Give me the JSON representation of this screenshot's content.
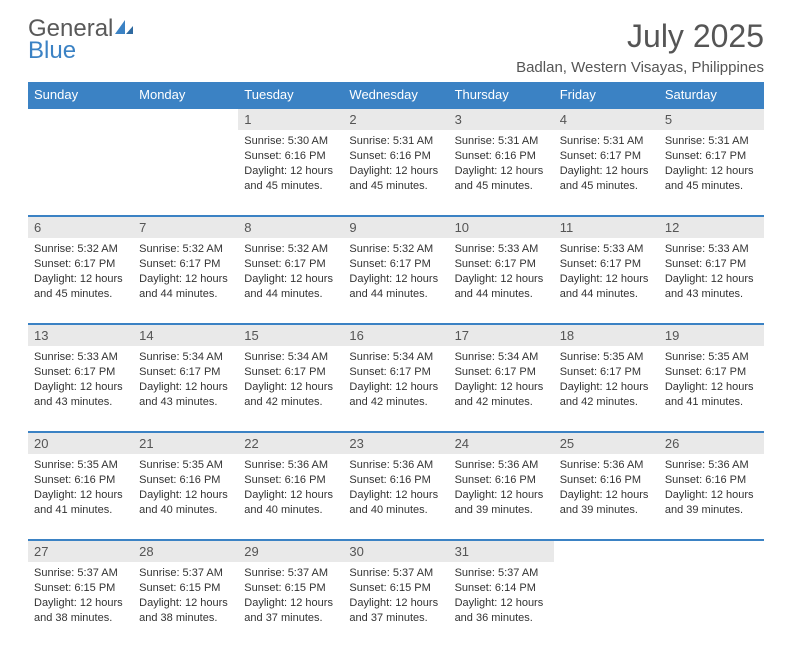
{
  "brand": {
    "word1": "General",
    "word2": "Blue"
  },
  "title": "July 2025",
  "location": "Badlan, Western Visayas, Philippines",
  "colors": {
    "accent": "#3b82c4",
    "header_bg": "#3b82c4",
    "header_text": "#ffffff",
    "daynum_bg": "#e9e9e9",
    "text": "#333333",
    "brand_gray": "#595959"
  },
  "layout": {
    "columns": 7,
    "weeks": 5,
    "first_weekday_index": 2,
    "days_in_month": 31
  },
  "weekdays": [
    "Sunday",
    "Monday",
    "Tuesday",
    "Wednesday",
    "Thursday",
    "Friday",
    "Saturday"
  ],
  "days": [
    {
      "n": 1,
      "sunrise": "5:30 AM",
      "sunset": "6:16 PM",
      "daylight": "12 hours and 45 minutes."
    },
    {
      "n": 2,
      "sunrise": "5:31 AM",
      "sunset": "6:16 PM",
      "daylight": "12 hours and 45 minutes."
    },
    {
      "n": 3,
      "sunrise": "5:31 AM",
      "sunset": "6:16 PM",
      "daylight": "12 hours and 45 minutes."
    },
    {
      "n": 4,
      "sunrise": "5:31 AM",
      "sunset": "6:17 PM",
      "daylight": "12 hours and 45 minutes."
    },
    {
      "n": 5,
      "sunrise": "5:31 AM",
      "sunset": "6:17 PM",
      "daylight": "12 hours and 45 minutes."
    },
    {
      "n": 6,
      "sunrise": "5:32 AM",
      "sunset": "6:17 PM",
      "daylight": "12 hours and 45 minutes."
    },
    {
      "n": 7,
      "sunrise": "5:32 AM",
      "sunset": "6:17 PM",
      "daylight": "12 hours and 44 minutes."
    },
    {
      "n": 8,
      "sunrise": "5:32 AM",
      "sunset": "6:17 PM",
      "daylight": "12 hours and 44 minutes."
    },
    {
      "n": 9,
      "sunrise": "5:32 AM",
      "sunset": "6:17 PM",
      "daylight": "12 hours and 44 minutes."
    },
    {
      "n": 10,
      "sunrise": "5:33 AM",
      "sunset": "6:17 PM",
      "daylight": "12 hours and 44 minutes."
    },
    {
      "n": 11,
      "sunrise": "5:33 AM",
      "sunset": "6:17 PM",
      "daylight": "12 hours and 44 minutes."
    },
    {
      "n": 12,
      "sunrise": "5:33 AM",
      "sunset": "6:17 PM",
      "daylight": "12 hours and 43 minutes."
    },
    {
      "n": 13,
      "sunrise": "5:33 AM",
      "sunset": "6:17 PM",
      "daylight": "12 hours and 43 minutes."
    },
    {
      "n": 14,
      "sunrise": "5:34 AM",
      "sunset": "6:17 PM",
      "daylight": "12 hours and 43 minutes."
    },
    {
      "n": 15,
      "sunrise": "5:34 AM",
      "sunset": "6:17 PM",
      "daylight": "12 hours and 42 minutes."
    },
    {
      "n": 16,
      "sunrise": "5:34 AM",
      "sunset": "6:17 PM",
      "daylight": "12 hours and 42 minutes."
    },
    {
      "n": 17,
      "sunrise": "5:34 AM",
      "sunset": "6:17 PM",
      "daylight": "12 hours and 42 minutes."
    },
    {
      "n": 18,
      "sunrise": "5:35 AM",
      "sunset": "6:17 PM",
      "daylight": "12 hours and 42 minutes."
    },
    {
      "n": 19,
      "sunrise": "5:35 AM",
      "sunset": "6:17 PM",
      "daylight": "12 hours and 41 minutes."
    },
    {
      "n": 20,
      "sunrise": "5:35 AM",
      "sunset": "6:16 PM",
      "daylight": "12 hours and 41 minutes."
    },
    {
      "n": 21,
      "sunrise": "5:35 AM",
      "sunset": "6:16 PM",
      "daylight": "12 hours and 40 minutes."
    },
    {
      "n": 22,
      "sunrise": "5:36 AM",
      "sunset": "6:16 PM",
      "daylight": "12 hours and 40 minutes."
    },
    {
      "n": 23,
      "sunrise": "5:36 AM",
      "sunset": "6:16 PM",
      "daylight": "12 hours and 40 minutes."
    },
    {
      "n": 24,
      "sunrise": "5:36 AM",
      "sunset": "6:16 PM",
      "daylight": "12 hours and 39 minutes."
    },
    {
      "n": 25,
      "sunrise": "5:36 AM",
      "sunset": "6:16 PM",
      "daylight": "12 hours and 39 minutes."
    },
    {
      "n": 26,
      "sunrise": "5:36 AM",
      "sunset": "6:16 PM",
      "daylight": "12 hours and 39 minutes."
    },
    {
      "n": 27,
      "sunrise": "5:37 AM",
      "sunset": "6:15 PM",
      "daylight": "12 hours and 38 minutes."
    },
    {
      "n": 28,
      "sunrise": "5:37 AM",
      "sunset": "6:15 PM",
      "daylight": "12 hours and 38 minutes."
    },
    {
      "n": 29,
      "sunrise": "5:37 AM",
      "sunset": "6:15 PM",
      "daylight": "12 hours and 37 minutes."
    },
    {
      "n": 30,
      "sunrise": "5:37 AM",
      "sunset": "6:15 PM",
      "daylight": "12 hours and 37 minutes."
    },
    {
      "n": 31,
      "sunrise": "5:37 AM",
      "sunset": "6:14 PM",
      "daylight": "12 hours and 36 minutes."
    }
  ],
  "labels": {
    "sunrise": "Sunrise:",
    "sunset": "Sunset:",
    "daylight": "Daylight:"
  }
}
